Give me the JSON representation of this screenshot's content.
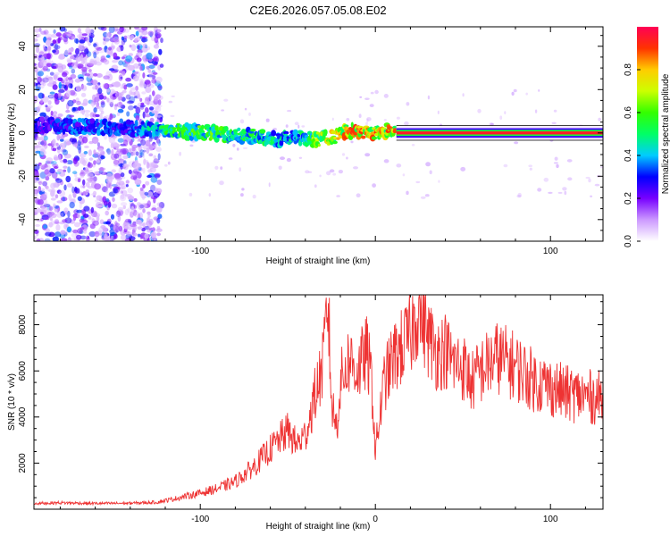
{
  "title": "C2E6.2026.057.05.08.E02",
  "colors": {
    "axis": "#000000",
    "snr_line": "#ee3333",
    "background": "#ffffff"
  },
  "chart_data": [
    {
      "type": "heatmap",
      "title": "C2E6.2026.057.05.08.E02",
      "xlabel": "Height of straight line (km)",
      "ylabel": "Frequency (Hz)",
      "xlim": [
        -195,
        130
      ],
      "ylim": [
        -50,
        49
      ],
      "xticks": [
        -100,
        0,
        100
      ],
      "xtick_labels": [
        "-100",
        "",
        "100"
      ],
      "yticks": [
        40,
        20,
        0,
        -20,
        -40
      ],
      "ytick_labels": [
        "40",
        "20",
        "0",
        "-20",
        "-40"
      ],
      "ridge": {
        "x": [
          -195,
          -180,
          -160,
          -140,
          -125,
          -110,
          -95,
          -80,
          -65,
          -55,
          -45,
          -35,
          -25,
          -15,
          -5,
          5,
          12,
          130
        ],
        "frequency": [
          4,
          3,
          3,
          2,
          2,
          1,
          0,
          -1,
          -2,
          -3,
          -2,
          -3,
          -2,
          1,
          0,
          1,
          0,
          0
        ],
        "peak_amplitude": [
          0.3,
          0.35,
          0.4,
          0.35,
          0.55,
          0.6,
          0.65,
          0.55,
          0.55,
          0.5,
          0.45,
          0.7,
          0.8,
          0.95,
          0.9,
          0.85,
          0.9,
          0.95
        ]
      },
      "noise_region_x": [
        -195,
        -122
      ],
      "colorbar": {
        "label": "Normalized spectral amplitude",
        "range": [
          0,
          1
        ],
        "ticks": [
          0.0,
          0.2,
          0.4,
          0.6,
          0.8
        ],
        "tick_labels": [
          "0.0",
          "0.2",
          "0.4",
          "0.6",
          "0.8"
        ],
        "stops": [
          "#ffffff",
          "#cc99ff",
          "#7700ff",
          "#0000ff",
          "#00ccff",
          "#00ff66",
          "#33ff00",
          "#ccff00",
          "#ffcc00",
          "#ff3300",
          "#ff0055"
        ]
      }
    },
    {
      "type": "line",
      "xlabel": "Height of straight line (km)",
      "ylabel": "SNR (10 * v/v)",
      "xlim": [
        -195,
        130
      ],
      "ylim": [
        0,
        9300
      ],
      "xticks": [
        -100,
        0,
        100
      ],
      "xtick_labels": [
        "-100",
        "0",
        "100"
      ],
      "yticks": [
        2000,
        4000,
        6000,
        8000
      ],
      "ytick_labels": [
        "2000",
        "4000",
        "6000",
        "8000"
      ],
      "series": [
        {
          "name": "SNR",
          "x": [
            -195,
            -180,
            -160,
            -140,
            -125,
            -115,
            -100,
            -90,
            -80,
            -70,
            -60,
            -55,
            -50,
            -45,
            -40,
            -35,
            -30,
            -27,
            -25,
            -22,
            -20,
            -15,
            -10,
            -5,
            -2,
            0,
            5,
            10,
            15,
            20,
            25,
            30,
            35,
            40,
            45,
            50,
            55,
            60,
            70,
            80,
            90,
            100,
            110,
            120,
            130
          ],
          "y": [
            250,
            280,
            250,
            260,
            300,
            450,
            700,
            900,
            1200,
            1800,
            2600,
            3000,
            3400,
            2800,
            3200,
            4800,
            6200,
            9000,
            4500,
            3600,
            5500,
            6500,
            6000,
            6800,
            5500,
            2500,
            5500,
            6500,
            7000,
            7500,
            8900,
            7500,
            6800,
            6900,
            6300,
            6200,
            5500,
            6000,
            6600,
            6200,
            5600,
            5300,
            5000,
            4900,
            4800
          ]
        }
      ]
    }
  ]
}
